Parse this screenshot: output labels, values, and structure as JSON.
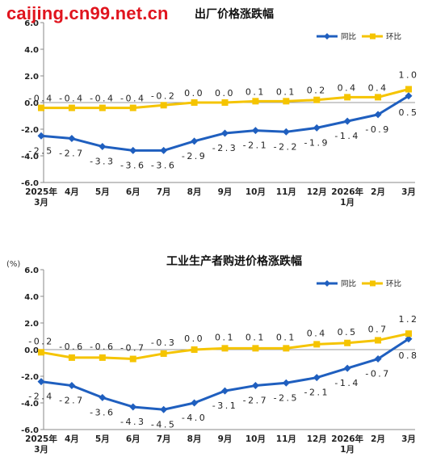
{
  "watermark": "caijing.cn99.net.cn",
  "chart_data": [
    {
      "type": "line",
      "title": "出厂价格涨跌幅",
      "unit": "",
      "ylim": [
        -6.0,
        6.0
      ],
      "yticks": [
        "6.0",
        "4.0",
        "2.0",
        "0.0",
        "-2.0",
        "-4.0",
        "-6.0"
      ],
      "categories": [
        {
          "label": "2025年",
          "label2": "3月"
        },
        {
          "label": "4月"
        },
        {
          "label": "5月"
        },
        {
          "label": "6月"
        },
        {
          "label": "7月"
        },
        {
          "label": "8月"
        },
        {
          "label": "9月"
        },
        {
          "label": "10月"
        },
        {
          "label": "11月"
        },
        {
          "label": "12月"
        },
        {
          "label": "2026年",
          "label2": "1月"
        },
        {
          "label": "2月"
        },
        {
          "label": "3月"
        }
      ],
      "series": [
        {
          "name": "同比",
          "color": "#1f5fbf",
          "values": [
            -2.5,
            -2.7,
            -3.3,
            -3.6,
            -3.6,
            -2.9,
            -2.3,
            -2.1,
            -2.2,
            -1.9,
            -1.4,
            -0.9,
            0.5
          ],
          "labels": [
            "-2.5",
            "-2.7",
            "-3.3",
            "-3.6",
            "-3.6",
            "-2.9",
            "-2.3",
            "-2.1",
            "-2.2",
            "-1.9",
            "-1.4",
            "-0.9",
            "0.5"
          ]
        },
        {
          "name": "环比",
          "color": "#f5c400",
          "values": [
            -0.4,
            -0.4,
            -0.4,
            -0.4,
            -0.2,
            0.0,
            0.0,
            0.1,
            0.1,
            0.2,
            0.4,
            0.4,
            1.0
          ],
          "labels": [
            "-0.4",
            "-0.4",
            "-0.4",
            "-0.4",
            "-0.2",
            "0.0",
            "0.0",
            "0.1",
            "0.1",
            "0.2",
            "0.4",
            "0.4",
            "1.0"
          ]
        }
      ],
      "legend": "top-right"
    },
    {
      "type": "line",
      "title": "工业生产者购进价格涨跌幅",
      "unit": "(%)",
      "ylim": [
        -6.0,
        6.0
      ],
      "yticks": [
        "6.0",
        "4.0",
        "2.0",
        "0.0",
        "-2.0",
        "-4.0",
        "-6.0"
      ],
      "categories": [
        {
          "label": "2025年",
          "label2": "3月"
        },
        {
          "label": "4月"
        },
        {
          "label": "5月"
        },
        {
          "label": "6月"
        },
        {
          "label": "7月"
        },
        {
          "label": "8月"
        },
        {
          "label": "9月"
        },
        {
          "label": "10月"
        },
        {
          "label": "11月"
        },
        {
          "label": "12月"
        },
        {
          "label": "2026年",
          "label2": "1月"
        },
        {
          "label": "2月"
        },
        {
          "label": "3月"
        }
      ],
      "series": [
        {
          "name": "同比",
          "color": "#1f5fbf",
          "values": [
            -2.4,
            -2.7,
            -3.6,
            -4.3,
            -4.5,
            -4.0,
            -3.1,
            -2.7,
            -2.5,
            -2.1,
            -1.4,
            -0.7,
            0.8
          ],
          "labels": [
            "-2.4",
            "-2.7",
            "-3.6",
            "-4.3",
            "-4.5",
            "-4.0",
            "-3.1",
            "-2.7",
            "-2.5",
            "-2.1",
            "-1.4",
            "-0.7",
            "0.8"
          ]
        },
        {
          "name": "环比",
          "color": "#f5c400",
          "values": [
            -0.2,
            -0.6,
            -0.6,
            -0.7,
            -0.3,
            0.0,
            0.1,
            0.1,
            0.1,
            0.4,
            0.5,
            0.7,
            1.2
          ],
          "labels": [
            "-0.2",
            "-0.6",
            "-0.6",
            "-0.7",
            "-0.3",
            "0.0",
            "0.1",
            "0.1",
            "0.1",
            "0.4",
            "0.5",
            "0.7",
            "1.2"
          ]
        }
      ],
      "legend": "top-right"
    }
  ]
}
